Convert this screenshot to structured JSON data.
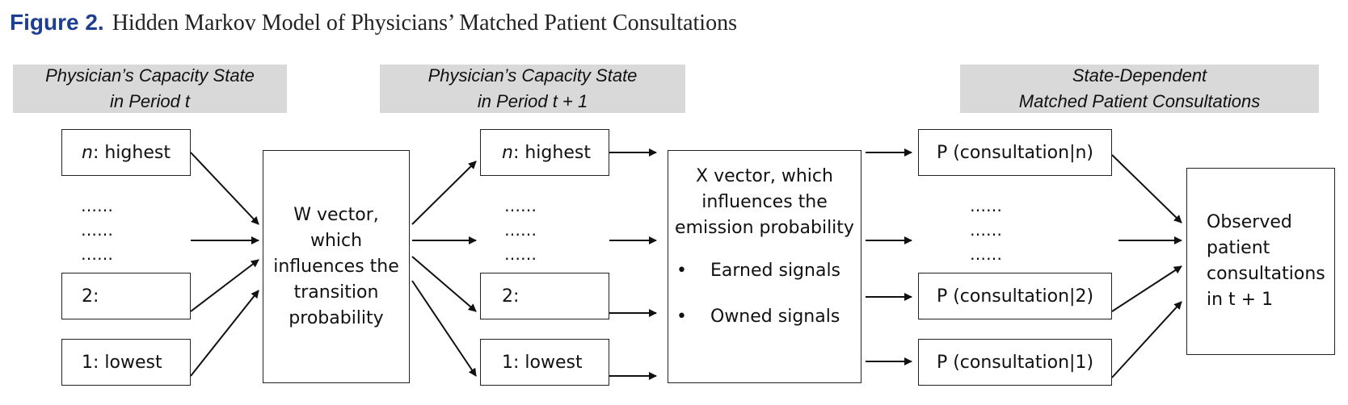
{
  "figure": {
    "label": "Figure 2.",
    "title": "Hidden Markov Model of Physicians’ Matched Patient Consultations"
  },
  "headers": {
    "period_t": [
      "Physician’s Capacity State",
      "in Period t"
    ],
    "period_t1": [
      "Physician’s Capacity State",
      "in Period t + 1"
    ],
    "consultations": [
      "State-Dependent",
      "Matched Patient Consultations"
    ]
  },
  "states_t": {
    "highest_n": "n",
    "highest_text": ": highest",
    "two": "2:",
    "lowest": "1: lowest",
    "dots": [
      "……",
      "……",
      "……"
    ]
  },
  "states_t1": {
    "highest_n": "n",
    "highest_text": ": highest",
    "two": "2:",
    "lowest": "1: lowest",
    "dots": [
      "……",
      "……",
      "……"
    ]
  },
  "w_box": [
    "W vector,",
    "which",
    "influences the",
    "transition",
    "probability"
  ],
  "x_box": {
    "lines": [
      "X vector, which",
      "influences the",
      "emission probability"
    ],
    "bullets": [
      "Earned signals",
      "Owned signals"
    ]
  },
  "consult": {
    "n": "P (consultation|n)",
    "two": "P (consultation|2)",
    "one": "P (consultation|1)",
    "dots": [
      "……",
      "……",
      "……"
    ]
  },
  "observed": [
    "Observed",
    "patient",
    "consultations",
    "in t + 1"
  ]
}
